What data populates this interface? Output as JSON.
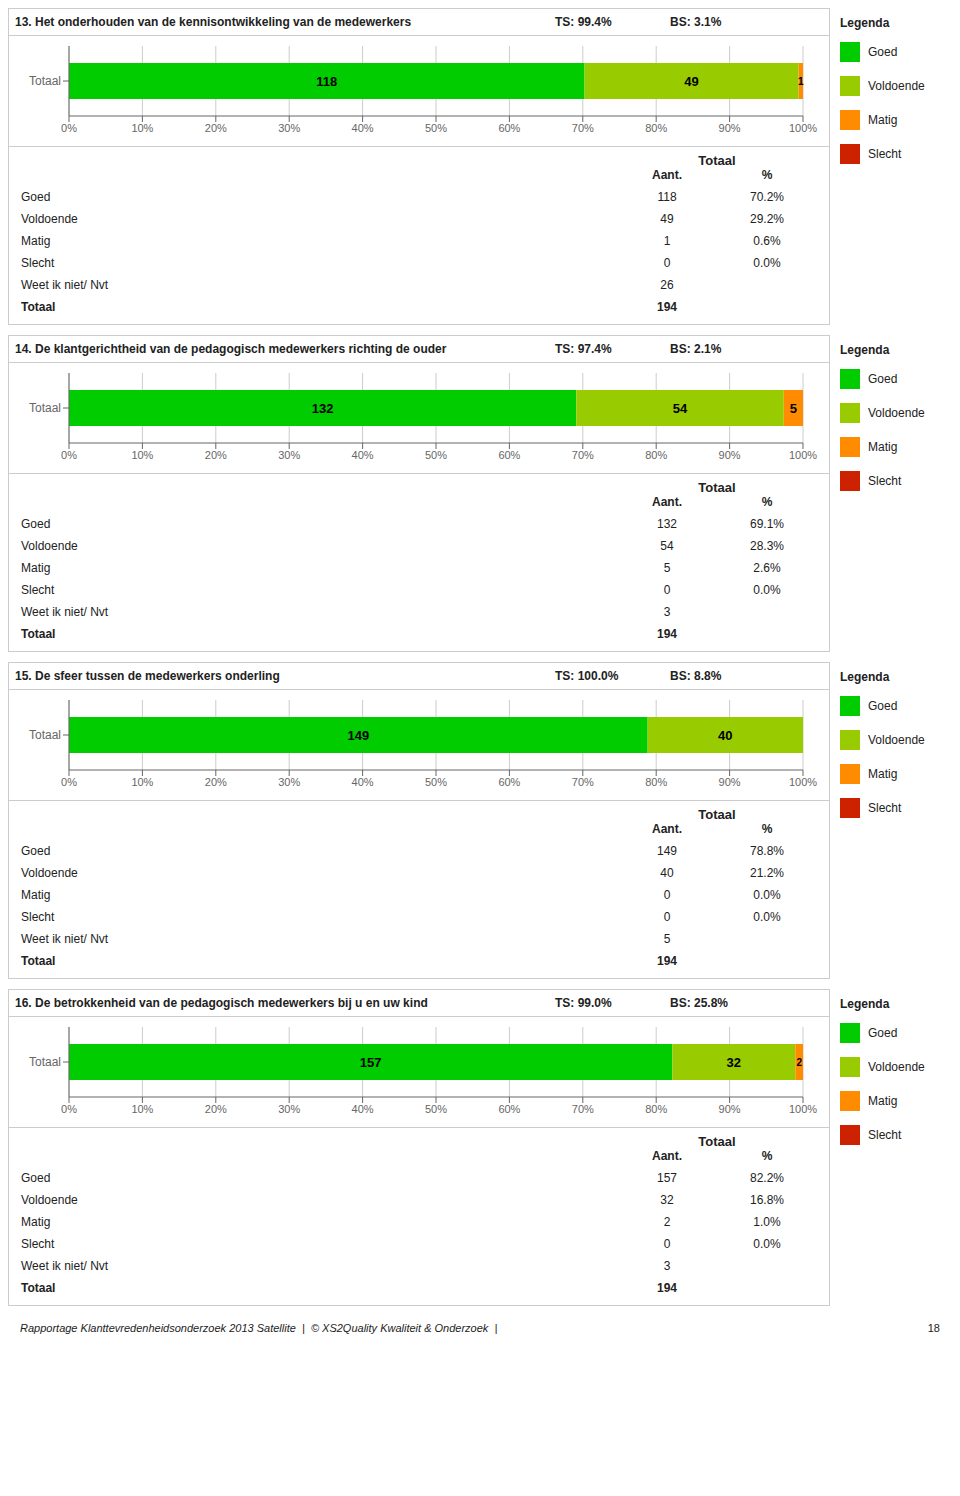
{
  "chart_data": [
    {
      "type": "bar",
      "title": "13. Het onderhouden van de kennisontwikkeling van de medewerkers",
      "annotations": [
        "TS: 99.4%",
        "BS: 3.1%"
      ],
      "orientation": "horizontal",
      "stacked": true,
      "grid": true,
      "legend_title": "Legenda",
      "categories": [
        "Totaal"
      ],
      "series": [
        {
          "name": "Goed",
          "color": "#00CC00",
          "values": [
            70.23809523809523
          ],
          "counts": [
            118
          ]
        },
        {
          "name": "Voldoende",
          "color": "#99CC00",
          "values": [
            29.166666666666668
          ],
          "counts": [
            49
          ]
        },
        {
          "name": "Matig",
          "color": "#FF8C00",
          "values": [
            0.5952380952380952
          ],
          "counts": [
            1
          ]
        },
        {
          "name": "Slecht",
          "color": "#CC2200",
          "values": [
            0
          ],
          "counts": [
            0
          ]
        }
      ],
      "xlim": [
        0,
        100
      ],
      "xticks": [
        {
          "value": 0,
          "label": "0%"
        },
        {
          "value": 10,
          "label": "10%"
        },
        {
          "value": 20,
          "label": "20%"
        },
        {
          "value": 30,
          "label": "30%"
        },
        {
          "value": 40,
          "label": "40%"
        },
        {
          "value": 50,
          "label": "50%"
        },
        {
          "value": 60,
          "label": "60%"
        },
        {
          "value": 70,
          "label": "70%"
        },
        {
          "value": 80,
          "label": "80%"
        },
        {
          "value": 90,
          "label": "90%"
        },
        {
          "value": 100,
          "label": "100%"
        }
      ],
      "table": {
        "header": "Totaal",
        "columns": [
          "Aant.",
          "%"
        ],
        "rows": [
          {
            "label": "Goed",
            "count": 118,
            "pct": "70.2%"
          },
          {
            "label": "Voldoende",
            "count": 49,
            "pct": "29.2%"
          },
          {
            "label": "Matig",
            "count": 1,
            "pct": "0.6%"
          },
          {
            "label": "Slecht",
            "count": 0,
            "pct": "0.0%"
          },
          {
            "label": "Weet ik niet/ Nvt",
            "count": 26
          },
          {
            "label": "Totaal",
            "count": 194
          }
        ]
      }
    },
    {
      "type": "bar",
      "title": "14. De klantgerichtheid van de pedagogisch medewerkers richting de ouder",
      "annotations": [
        "TS: 97.4%",
        "BS: 2.1%"
      ],
      "orientation": "horizontal",
      "stacked": true,
      "grid": true,
      "legend_title": "Legenda",
      "categories": [
        "Totaal"
      ],
      "series": [
        {
          "name": "Goed",
          "color": "#00CC00",
          "values": [
            69.10994764397905
          ],
          "counts": [
            132
          ]
        },
        {
          "name": "Voldoende",
          "color": "#99CC00",
          "values": [
            28.272251308900525
          ],
          "counts": [
            54
          ]
        },
        {
          "name": "Matig",
          "color": "#FF8C00",
          "values": [
            2.6178010471204187
          ],
          "counts": [
            5
          ]
        },
        {
          "name": "Slecht",
          "color": "#CC2200",
          "values": [
            0
          ],
          "counts": [
            0
          ]
        }
      ],
      "xlim": [
        0,
        100
      ],
      "xticks": [
        {
          "value": 0,
          "label": "0%"
        },
        {
          "value": 10,
          "label": "10%"
        },
        {
          "value": 20,
          "label": "20%"
        },
        {
          "value": 30,
          "label": "30%"
        },
        {
          "value": 40,
          "label": "40%"
        },
        {
          "value": 50,
          "label": "50%"
        },
        {
          "value": 60,
          "label": "60%"
        },
        {
          "value": 70,
          "label": "70%"
        },
        {
          "value": 80,
          "label": "80%"
        },
        {
          "value": 90,
          "label": "90%"
        },
        {
          "value": 100,
          "label": "100%"
        }
      ],
      "table": {
        "header": "Totaal",
        "columns": [
          "Aant.",
          "%"
        ],
        "rows": [
          {
            "label": "Goed",
            "count": 132,
            "pct": "69.1%"
          },
          {
            "label": "Voldoende",
            "count": 54,
            "pct": "28.3%"
          },
          {
            "label": "Matig",
            "count": 5,
            "pct": "2.6%"
          },
          {
            "label": "Slecht",
            "count": 0,
            "pct": "0.0%"
          },
          {
            "label": "Weet ik niet/ Nvt",
            "count": 3
          },
          {
            "label": "Totaal",
            "count": 194
          }
        ]
      }
    },
    {
      "type": "bar",
      "title": "15. De sfeer tussen de medewerkers onderling",
      "annotations": [
        "TS: 100.0%",
        "BS: 8.8%"
      ],
      "orientation": "horizontal",
      "stacked": true,
      "grid": true,
      "legend_title": "Legenda",
      "categories": [
        "Totaal"
      ],
      "series": [
        {
          "name": "Goed",
          "color": "#00CC00",
          "values": [
            78.83597883597884
          ],
          "counts": [
            149
          ]
        },
        {
          "name": "Voldoende",
          "color": "#99CC00",
          "values": [
            21.164021164021165
          ],
          "counts": [
            40
          ]
        },
        {
          "name": "Matig",
          "color": "#FF8C00",
          "values": [
            0
          ],
          "counts": [
            0
          ]
        },
        {
          "name": "Slecht",
          "color": "#CC2200",
          "values": [
            0
          ],
          "counts": [
            0
          ]
        }
      ],
      "xlim": [
        0,
        100
      ],
      "xticks": [
        {
          "value": 0,
          "label": "0%"
        },
        {
          "value": 10,
          "label": "10%"
        },
        {
          "value": 20,
          "label": "20%"
        },
        {
          "value": 30,
          "label": "30%"
        },
        {
          "value": 40,
          "label": "40%"
        },
        {
          "value": 50,
          "label": "50%"
        },
        {
          "value": 60,
          "label": "60%"
        },
        {
          "value": 70,
          "label": "70%"
        },
        {
          "value": 80,
          "label": "80%"
        },
        {
          "value": 90,
          "label": "90%"
        },
        {
          "value": 100,
          "label": "100%"
        }
      ],
      "table": {
        "header": "Totaal",
        "columns": [
          "Aant.",
          "%"
        ],
        "rows": [
          {
            "label": "Goed",
            "count": 149,
            "pct": "78.8%"
          },
          {
            "label": "Voldoende",
            "count": 40,
            "pct": "21.2%"
          },
          {
            "label": "Matig",
            "count": 0,
            "pct": "0.0%"
          },
          {
            "label": "Slecht",
            "count": 0,
            "pct": "0.0%"
          },
          {
            "label": "Weet ik niet/ Nvt",
            "count": 5
          },
          {
            "label": "Totaal",
            "count": 194
          }
        ]
      }
    },
    {
      "type": "bar",
      "title": "16. De betrokkenheid van de pedagogisch medewerkers bij u en uw kind",
      "annotations": [
        "TS: 99.0%",
        "BS: 25.8%"
      ],
      "orientation": "horizontal",
      "stacked": true,
      "grid": true,
      "legend_title": "Legenda",
      "categories": [
        "Totaal"
      ],
      "series": [
        {
          "name": "Goed",
          "color": "#00CC00",
          "values": [
            82.19895287958116
          ],
          "counts": [
            157
          ]
        },
        {
          "name": "Voldoende",
          "color": "#99CC00",
          "values": [
            16.75392670157068
          ],
          "counts": [
            32
          ]
        },
        {
          "name": "Matig",
          "color": "#FF8C00",
          "values": [
            1.0471204188481675
          ],
          "counts": [
            2
          ]
        },
        {
          "name": "Slecht",
          "color": "#CC2200",
          "values": [
            0
          ],
          "counts": [
            0
          ]
        }
      ],
      "xlim": [
        0,
        100
      ],
      "xticks": [
        {
          "value": 0,
          "label": "0%"
        },
        {
          "value": 10,
          "label": "10%"
        },
        {
          "value": 20,
          "label": "20%"
        },
        {
          "value": 30,
          "label": "30%"
        },
        {
          "value": 40,
          "label": "40%"
        },
        {
          "value": 50,
          "label": "50%"
        },
        {
          "value": 60,
          "label": "60%"
        },
        {
          "value": 70,
          "label": "70%"
        },
        {
          "value": 80,
          "label": "80%"
        },
        {
          "value": 90,
          "label": "90%"
        },
        {
          "value": 100,
          "label": "100%"
        }
      ],
      "table": {
        "header": "Totaal",
        "columns": [
          "Aant.",
          "%"
        ],
        "rows": [
          {
            "label": "Goed",
            "count": 157,
            "pct": "82.2%"
          },
          {
            "label": "Voldoende",
            "count": 32,
            "pct": "16.8%"
          },
          {
            "label": "Matig",
            "count": 2,
            "pct": "1.0%"
          },
          {
            "label": "Slecht",
            "count": 0,
            "pct": "0.0%"
          },
          {
            "label": "Weet ik niet/ Nvt",
            "count": 3
          },
          {
            "label": "Totaal",
            "count": 194
          }
        ]
      }
    }
  ],
  "footer": {
    "text": "Rapportage Klanttevredenheidsonderzoek 2013 Satellite  |  © XS2Quality Kwaliteit & Onderzoek  |",
    "page": "18"
  }
}
